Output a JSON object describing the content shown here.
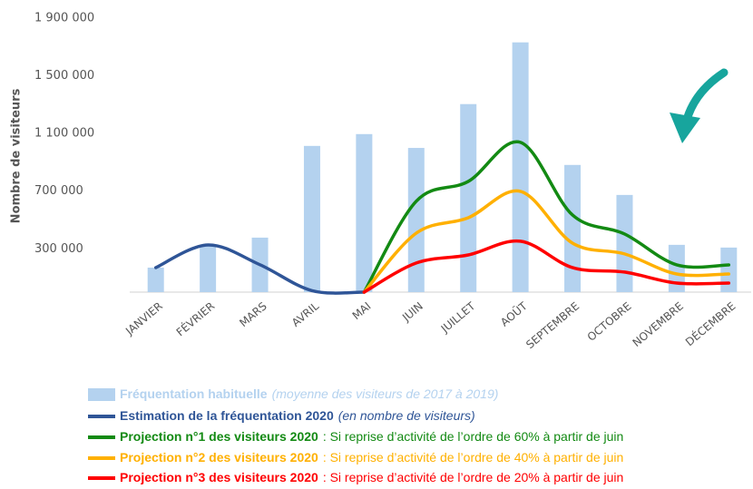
{
  "chart_data": {
    "type": "combo",
    "y_axis_label": "Nombre de visiteurs",
    "categories": [
      "JANVIER",
      "FÉVRIER",
      "MARS",
      "AVRIL",
      "MAI",
      "JUIN",
      "JUILLET",
      "AOÛT",
      "SEPTEMBRE",
      "OCTOBRE",
      "NOVEMBRE",
      "DÉCEMBRE"
    ],
    "ylim": [
      0,
      1900000
    ],
    "yticks": [
      {
        "value": 300000,
        "label": "300 000"
      },
      {
        "value": 700000,
        "label": "700 000"
      },
      {
        "value": 1100000,
        "label": "1 100 000"
      },
      {
        "value": 1500000,
        "label": "1 500 000"
      },
      {
        "value": 1900000,
        "label": "1 900 000"
      }
    ],
    "grid": false,
    "series": [
      {
        "name": "Fréquentation habituelle",
        "note": "(moyenne des visiteurs de 2017 à 2019)",
        "type": "bar",
        "color": "#b4d2ef",
        "values": [
          170000,
          320000,
          378000,
          1014000,
          1096000,
          1000000,
          1304000,
          1732000,
          882000,
          674000,
          328000,
          309000
        ]
      },
      {
        "name": "Estimation de la fréquentation 2020",
        "note": "(en nombre de visiteurs)",
        "type": "line",
        "color": "#2f5597",
        "values": [
          170000,
          327000,
          190000,
          10000,
          0,
          null,
          null,
          null,
          null,
          null,
          null,
          null
        ]
      },
      {
        "name": "Projection n°1 des visiteurs 2020",
        "note": ": Si reprise d’activité de l’ordre de 60% à partir de juin",
        "type": "line",
        "color": "#138a13",
        "values": [
          null,
          null,
          null,
          null,
          0,
          630000,
          768000,
          1039000,
          535000,
          403000,
          189000,
          189000
        ]
      },
      {
        "name": "Projection n°2 des visiteurs 2020",
        "note": ": Si reprise d’activité de l’ordre de 40% à partir de juin",
        "type": "line",
        "color": "#ffb000",
        "values": [
          null,
          null,
          null,
          null,
          0,
          409000,
          516000,
          699000,
          340000,
          265000,
          126000,
          126000
        ]
      },
      {
        "name": "Projection n°3 des visiteurs 2020",
        "note": ": Si reprise d’activité de l’ordre de 20% à partir de juin",
        "type": "line",
        "color": "#ff0000",
        "values": [
          null,
          null,
          null,
          null,
          0,
          202000,
          258000,
          353000,
          170000,
          139000,
          63000,
          63000
        ]
      }
    ]
  }
}
